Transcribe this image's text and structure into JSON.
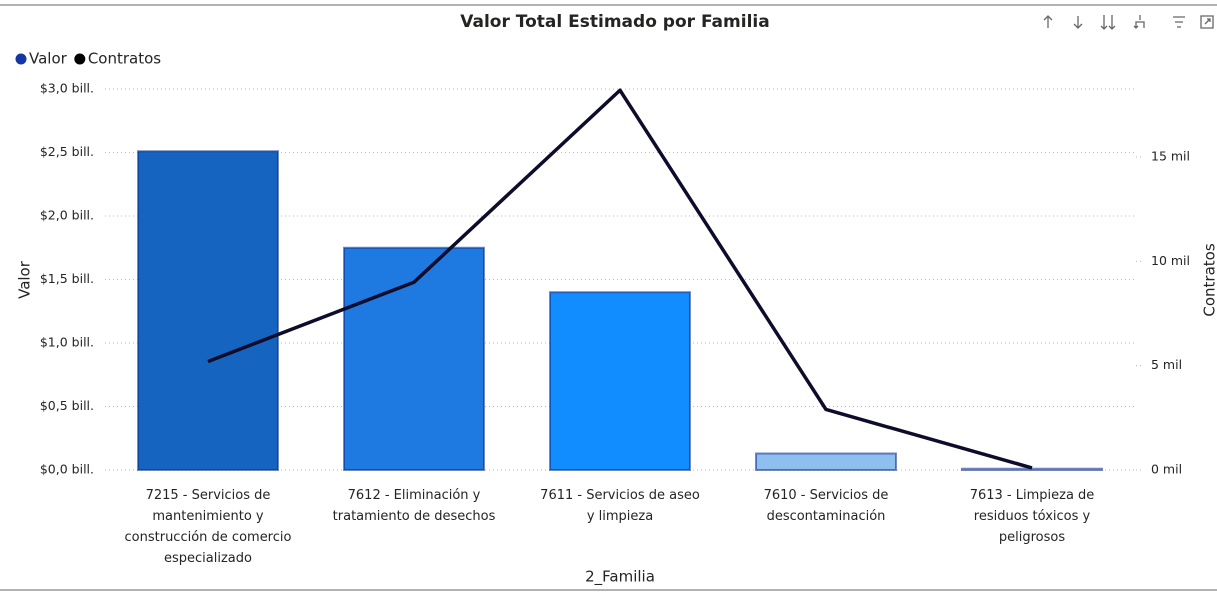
{
  "chart_data": {
    "type": "bar_line",
    "title": "Valor Total Estimado por Familia",
    "x_label": "2_Familia",
    "y_label": "Valor",
    "y2_label": "Contratos",
    "categories": [
      "7215 - Servicios de mantenimiento y construcción de comercio especializado",
      "7612 - Eliminación y tratamiento de desechos",
      "7611 - Servicios de aseo y limpieza",
      "7610 - Servicios de descontaminación",
      "7613 - Limpieza de residuos tóxicos y peligrosos"
    ],
    "series": [
      {
        "name": "Valor",
        "type": "bar",
        "color": "#1237a5",
        "colors": [
          "#1565c0",
          "#1e7ae0",
          "#118dff",
          "#8fbfef",
          "#b9d6f5"
        ],
        "values": [
          2.51,
          1.75,
          1.4,
          0.13,
          0.01
        ]
      },
      {
        "name": "Contratos",
        "type": "line",
        "axis": "y2",
        "color": "#0d0d2b",
        "values": [
          5.2,
          9.0,
          18.2,
          2.9,
          0.1
        ]
      }
    ],
    "ylim": [
      0,
      3
    ],
    "yticks": [
      {
        "value": 0,
        "label": "$0,0 bill."
      },
      {
        "value": 0.5,
        "label": "$0,5 bill."
      },
      {
        "value": 1,
        "label": "$1,0 bill."
      },
      {
        "value": 1.5,
        "label": "$1,5 bill."
      },
      {
        "value": 2,
        "label": "$2,0 bill."
      },
      {
        "value": 2.5,
        "label": "$2,5 bill."
      },
      {
        "value": 3,
        "label": "$3,0 bill."
      }
    ],
    "y2lim": [
      0,
      18.26
    ],
    "y2ticks": [
      {
        "value": 0,
        "label": "0 mil"
      },
      {
        "value": 5,
        "label": "5 mil"
      },
      {
        "value": 10,
        "label": "10 mil"
      },
      {
        "value": 15,
        "label": "15 mil"
      }
    ],
    "grid": true,
    "legend": "top-left"
  }
}
